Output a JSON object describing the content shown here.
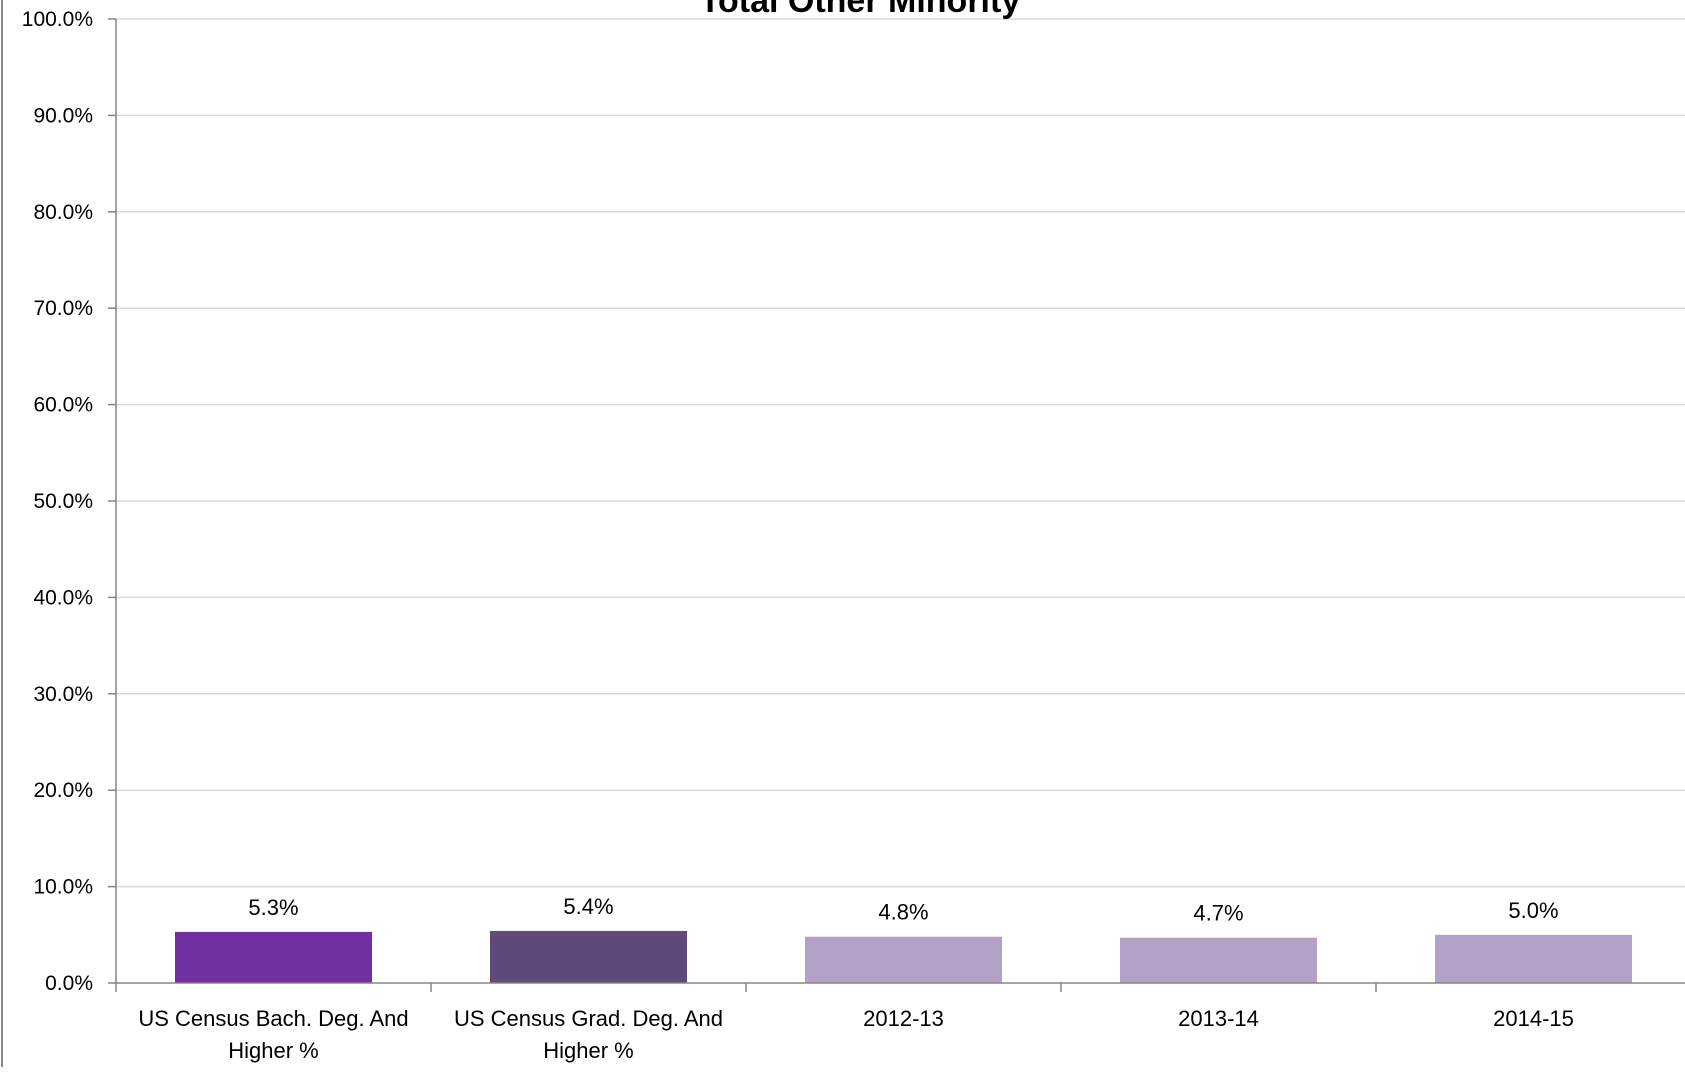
{
  "chart_data": {
    "type": "bar",
    "title": "Total Other Minority",
    "categories": [
      [
        "US Census Bach. Deg. And",
        "Higher %"
      ],
      [
        "US Census Grad. Deg. And",
        "Higher %"
      ],
      [
        "2012-13"
      ],
      [
        "2013-14"
      ],
      [
        "2014-15"
      ]
    ],
    "values": [
      5.3,
      5.4,
      4.8,
      4.7,
      5.0
    ],
    "data_labels": [
      "5.3%",
      "5.4%",
      "4.8%",
      "4.7%",
      "5.0%"
    ],
    "bar_colors": [
      "#7030a0",
      "#604a7b",
      "#b3a2c7",
      "#b3a2c7",
      "#b3a2c7"
    ],
    "ylim": [
      0,
      100
    ],
    "yticks": [
      0,
      10,
      20,
      30,
      40,
      50,
      60,
      70,
      80,
      90,
      100
    ],
    "ytick_labels": [
      "0.0%",
      "10.0%",
      "20.0%",
      "30.0%",
      "40.0%",
      "50.0%",
      "60.0%",
      "70.0%",
      "80.0%",
      "90.0%",
      "100.0%"
    ],
    "grid": true,
    "legend": "none",
    "xlabel": "",
    "ylabel": ""
  }
}
